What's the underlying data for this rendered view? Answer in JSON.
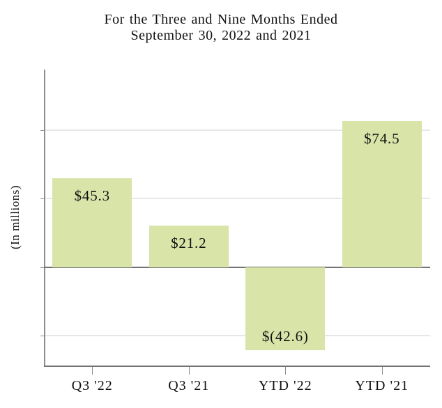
{
  "title": {
    "line1": "For the Three and Nine Months Ended",
    "line2": "September 30, 2022 and 2021"
  },
  "chart_data": {
    "type": "bar",
    "title": "For the Three and Nine Months Ended September 30, 2022 and 2021",
    "categories": [
      "Q3 '22",
      "Q3 '21",
      "YTD '22",
      "YTD '21"
    ],
    "values": [
      45.3,
      21.2,
      -42.6,
      74.5
    ],
    "value_labels": [
      "$45.3",
      "$21.2",
      "$(42.6)",
      "$74.5"
    ],
    "xlabel": "",
    "ylabel": "(In millions)",
    "ylim": [
      -51,
      101
    ],
    "gridline_values": [
      70,
      35,
      -35
    ],
    "zero_line_value": 0,
    "grid": true,
    "legend": "none",
    "colors": {
      "bar_fill": "#d8e4a8",
      "gridline": "#e7e7e7",
      "zero_line": "#737373",
      "axis_line": "#8c8c8c",
      "text": "#111111",
      "background": "#ffffff"
    }
  }
}
